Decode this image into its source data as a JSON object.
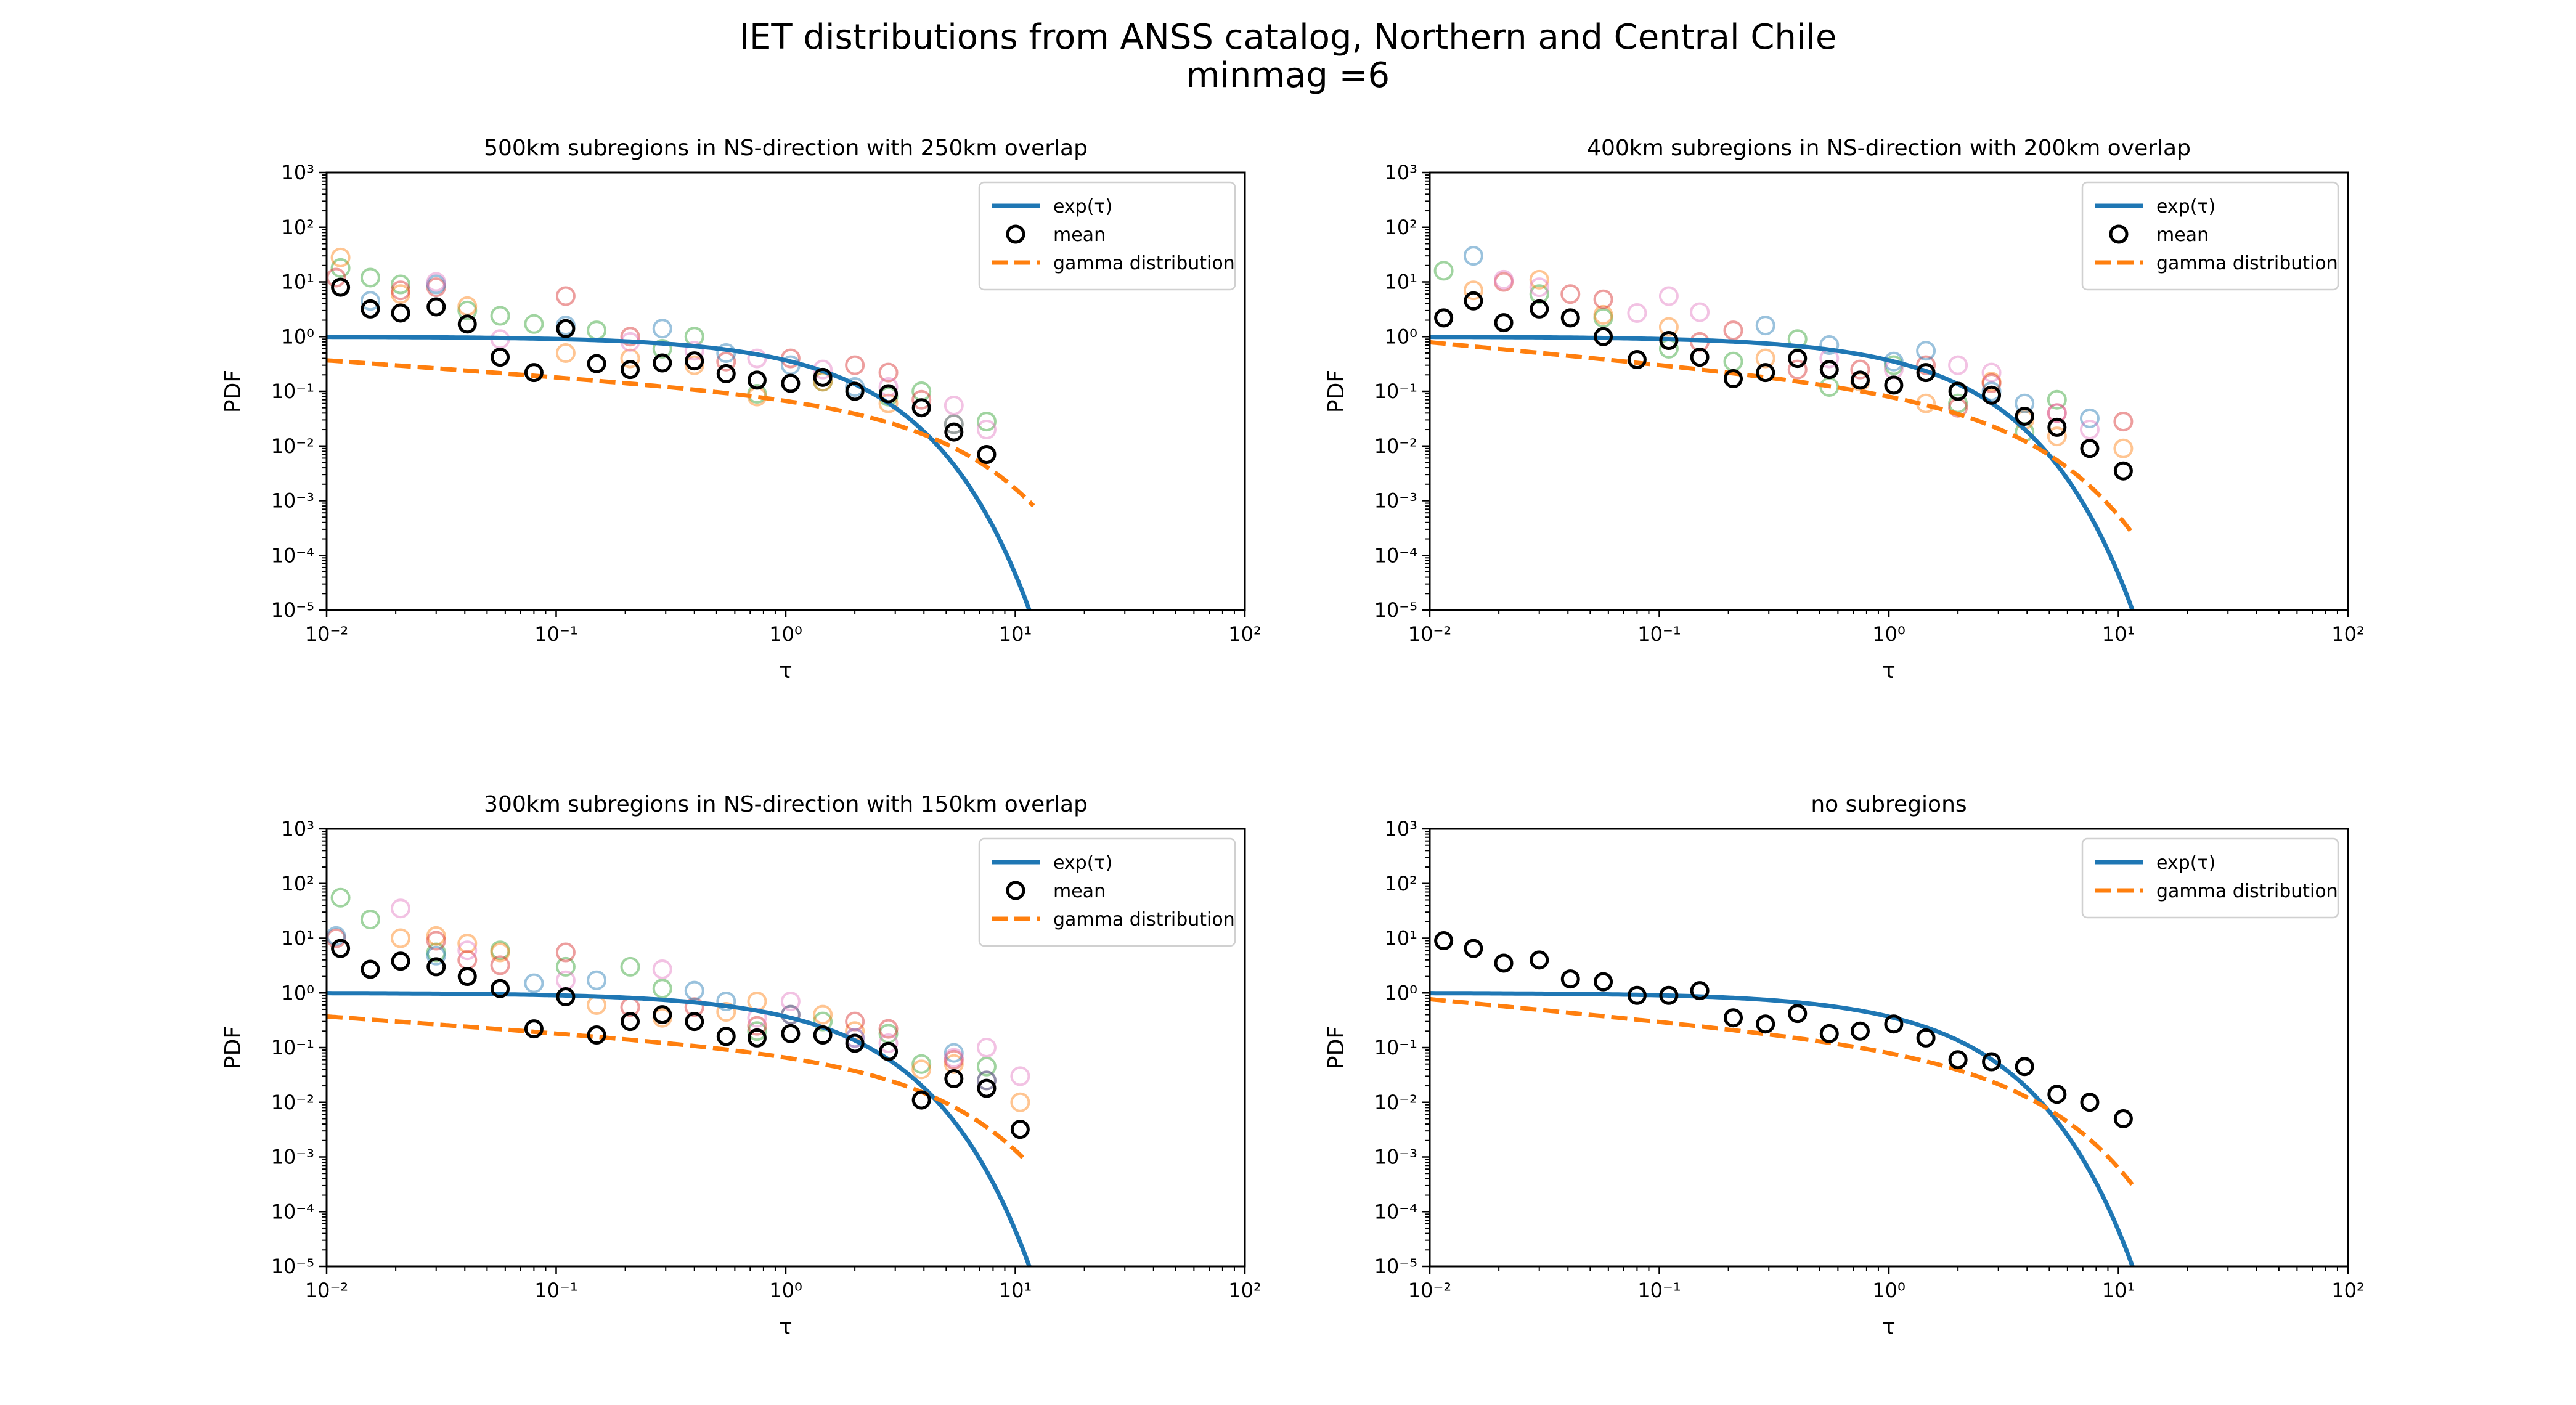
{
  "figure": {
    "suptitle_line1": "IET distributions from ANSS catalog, Northern and Central Chile",
    "suptitle_line2": "minmag =6"
  },
  "colors": {
    "exp": "#1f77b4",
    "gamma": "#ff7f0e",
    "mean": "#000000",
    "subregion_markers": [
      "#ff7f0e",
      "#2ca02c",
      "#d62728",
      "#1f77b4",
      "#e377c2"
    ]
  },
  "chart_data": [
    {
      "type": "scatter",
      "title": "500km subregions  in NS-direction with 250km overlap",
      "xlabel": "τ",
      "ylabel": "PDF",
      "xscale": "log",
      "yscale": "log",
      "xlim": [
        0.01,
        100
      ],
      "ylim": [
        1e-05,
        1000
      ],
      "xtick_exponents": [
        -2,
        -1,
        0,
        1,
        2
      ],
      "ytick_exponents": [
        -5,
        -4,
        -3,
        -2,
        -1,
        0,
        1,
        2,
        3
      ],
      "legend": {
        "position": "top-right",
        "entries": [
          "exp(τ)",
          "mean",
          "gamma distribution"
        ]
      },
      "series": [
        {
          "name": "exp(τ)",
          "kind": "line",
          "color": "#1f77b4",
          "function": "exp(-x)",
          "x_range": [
            0.01,
            12
          ]
        },
        {
          "name": "gamma distribution",
          "kind": "dashed",
          "color": "#ff7f0e",
          "shape": 0.7,
          "scale": 3.0,
          "amplitude": 0.26,
          "x_range": [
            0.01,
            12
          ]
        },
        {
          "name": "mean",
          "kind": "mean",
          "color": "#000000",
          "x": [
            0.0115,
            0.0155,
            0.021,
            0.03,
            0.041,
            0.057,
            0.08,
            0.11,
            0.15,
            0.21,
            0.29,
            0.4,
            0.55,
            0.75,
            1.05,
            1.45,
            2.0,
            2.8,
            3.9,
            5.4,
            7.5
          ],
          "y": [
            8.0,
            3.2,
            2.7,
            3.5,
            1.7,
            0.42,
            0.22,
            1.4,
            0.32,
            0.25,
            0.33,
            0.36,
            0.21,
            0.16,
            0.14,
            0.18,
            0.1,
            0.09,
            0.05,
            0.018,
            0.007
          ]
        },
        {
          "kind": "sub",
          "color": "#2ca02c",
          "x": [
            0.0115,
            0.0155,
            0.021,
            0.041,
            0.057,
            0.08,
            0.15,
            0.29,
            0.4,
            0.75,
            1.45,
            2.8,
            3.9,
            7.5
          ],
          "y": [
            18,
            12,
            9,
            3.0,
            2.4,
            1.7,
            1.3,
            0.6,
            1.0,
            0.09,
            0.15,
            0.08,
            0.1,
            0.028
          ]
        },
        {
          "kind": "sub",
          "color": "#ff7f0e",
          "x": [
            0.0115,
            0.021,
            0.041,
            0.11,
            0.21,
            0.4,
            0.75,
            1.45,
            2.8,
            5.4
          ],
          "y": [
            28,
            6,
            3.6,
            0.5,
            0.4,
            0.3,
            0.08,
            0.15,
            0.06,
            0.025
          ]
        },
        {
          "kind": "sub",
          "color": "#d62728",
          "x": [
            0.011,
            0.021,
            0.03,
            0.11,
            0.21,
            0.55,
            1.05,
            2.0,
            2.8,
            3.9
          ],
          "y": [
            12,
            7,
            8,
            5.5,
            1.0,
            0.35,
            0.4,
            0.3,
            0.22,
            0.07
          ]
        },
        {
          "kind": "sub",
          "color": "#1f77b4",
          "x": [
            0.0155,
            0.03,
            0.11,
            0.29,
            0.55,
            1.05,
            2.0,
            5.4
          ],
          "y": [
            4.5,
            9.0,
            1.6,
            1.4,
            0.5,
            0.3,
            0.12,
            0.025
          ]
        },
        {
          "kind": "sub",
          "color": "#e377c2",
          "x": [
            0.03,
            0.057,
            0.21,
            0.4,
            0.75,
            1.45,
            2.8,
            5.4,
            7.5
          ],
          "y": [
            10,
            0.9,
            0.8,
            0.55,
            0.4,
            0.25,
            0.12,
            0.055,
            0.02
          ]
        }
      ]
    },
    {
      "type": "scatter",
      "title": "400km subregions  in NS-direction with 200km overlap",
      "xlabel": "τ",
      "ylabel": "PDF",
      "xscale": "log",
      "yscale": "log",
      "xlim": [
        0.01,
        100
      ],
      "ylim": [
        1e-05,
        1000
      ],
      "xtick_exponents": [
        -2,
        -1,
        0,
        1,
        2
      ],
      "ytick_exponents": [
        -5,
        -4,
        -3,
        -2,
        -1,
        0,
        1,
        2,
        3
      ],
      "legend": {
        "position": "top-right",
        "entries": [
          "exp(τ)",
          "mean",
          "gamma distribution"
        ]
      },
      "series": [
        {
          "name": "exp(τ)",
          "kind": "line",
          "color": "#1f77b4",
          "function": "exp(-x)",
          "x_range": [
            0.01,
            12
          ]
        },
        {
          "name": "gamma distribution",
          "kind": "dashed",
          "color": "#ff7f0e",
          "shape": 0.6,
          "scale": 2.2,
          "amplitude": 0.3,
          "x_range": [
            0.01,
            11.5
          ]
        },
        {
          "name": "mean",
          "kind": "mean",
          "color": "#000000",
          "x": [
            0.0115,
            0.0155,
            0.021,
            0.03,
            0.041,
            0.057,
            0.08,
            0.11,
            0.15,
            0.21,
            0.29,
            0.4,
            0.55,
            0.75,
            1.05,
            1.45,
            2.0,
            2.8,
            3.9,
            5.4,
            7.5,
            10.5
          ],
          "y": [
            2.2,
            4.5,
            1.8,
            3.2,
            2.2,
            1.0,
            0.38,
            0.85,
            0.42,
            0.17,
            0.22,
            0.4,
            0.25,
            0.16,
            0.13,
            0.22,
            0.1,
            0.085,
            0.035,
            0.022,
            0.009,
            0.0035
          ]
        },
        {
          "kind": "sub",
          "color": "#2ca02c",
          "x": [
            0.0115,
            0.03,
            0.057,
            0.11,
            0.21,
            0.4,
            0.55,
            1.05,
            2.0,
            3.9,
            5.4
          ],
          "y": [
            16,
            6,
            2.2,
            0.6,
            0.35,
            0.9,
            0.12,
            0.3,
            0.06,
            0.018,
            0.07
          ]
        },
        {
          "kind": "sub",
          "color": "#ff7f0e",
          "x": [
            0.0155,
            0.03,
            0.057,
            0.11,
            0.29,
            0.75,
            1.45,
            2.8,
            3.9,
            5.4,
            10.5
          ],
          "y": [
            7,
            11,
            2.5,
            1.5,
            0.4,
            0.15,
            0.06,
            0.15,
            0.03,
            0.015,
            0.009
          ]
        },
        {
          "kind": "sub",
          "color": "#d62728",
          "x": [
            0.021,
            0.041,
            0.057,
            0.15,
            0.21,
            0.4,
            0.75,
            1.45,
            2.0,
            2.8,
            5.4,
            10.5
          ],
          "y": [
            10,
            6,
            4.8,
            0.8,
            1.3,
            0.25,
            0.25,
            0.3,
            0.05,
            0.14,
            0.04,
            0.028
          ]
        },
        {
          "kind": "sub",
          "color": "#1f77b4",
          "x": [
            0.0155,
            0.29,
            0.55,
            1.05,
            1.45,
            2.8,
            3.9,
            7.5
          ],
          "y": [
            30,
            1.6,
            0.7,
            0.35,
            0.55,
            0.1,
            0.06,
            0.032
          ]
        },
        {
          "kind": "sub",
          "color": "#e377c2",
          "x": [
            0.021,
            0.03,
            0.08,
            0.11,
            0.15,
            0.55,
            1.05,
            2.0,
            2.8,
            5.4,
            7.5
          ],
          "y": [
            11,
            8,
            2.7,
            5.5,
            2.8,
            0.4,
            0.25,
            0.3,
            0.22,
            0.04,
            0.02
          ]
        }
      ]
    },
    {
      "type": "scatter",
      "title": "300km subregions  in NS-direction with 150km overlap",
      "xlabel": "τ",
      "ylabel": "PDF",
      "xscale": "log",
      "yscale": "log",
      "xlim": [
        0.01,
        100
      ],
      "ylim": [
        1e-05,
        1000
      ],
      "xtick_exponents": [
        -2,
        -1,
        0,
        1,
        2
      ],
      "ytick_exponents": [
        -5,
        -4,
        -3,
        -2,
        -1,
        0,
        1,
        2,
        3
      ],
      "legend": {
        "position": "top-right",
        "entries": [
          "exp(τ)",
          "mean",
          "gamma distribution"
        ]
      },
      "series": [
        {
          "name": "exp(τ)",
          "kind": "line",
          "color": "#1f77b4",
          "function": "exp(-x)",
          "x_range": [
            0.01,
            12
          ]
        },
        {
          "name": "gamma distribution",
          "kind": "dashed",
          "color": "#ff7f0e",
          "shape": 0.7,
          "scale": 2.8,
          "amplitude": 0.25,
          "x_range": [
            0.01,
            11
          ]
        },
        {
          "name": "mean",
          "kind": "mean",
          "color": "#000000",
          "x": [
            0.0115,
            0.0155,
            0.021,
            0.03,
            0.041,
            0.057,
            0.08,
            0.11,
            0.15,
            0.21,
            0.29,
            0.4,
            0.55,
            0.75,
            1.05,
            1.45,
            2.0,
            2.8,
            3.9,
            5.4,
            7.5,
            10.5
          ],
          "y": [
            6.5,
            2.7,
            3.8,
            3.0,
            2.0,
            1.2,
            0.22,
            0.85,
            0.17,
            0.3,
            0.4,
            0.3,
            0.16,
            0.15,
            0.18,
            0.17,
            0.12,
            0.085,
            0.011,
            0.027,
            0.018,
            0.0032
          ]
        },
        {
          "kind": "sub",
          "color": "#2ca02c",
          "x": [
            0.0115,
            0.0155,
            0.03,
            0.057,
            0.11,
            0.21,
            0.29,
            0.75,
            1.45,
            2.8,
            3.9,
            7.5
          ],
          "y": [
            55,
            22,
            5.5,
            6.0,
            3.0,
            3.0,
            1.2,
            0.2,
            0.3,
            0.18,
            0.05,
            0.045
          ]
        },
        {
          "kind": "sub",
          "color": "#ff7f0e",
          "x": [
            0.021,
            0.03,
            0.041,
            0.057,
            0.15,
            0.29,
            0.55,
            0.75,
            1.45,
            2.0,
            3.9,
            5.4,
            10.5
          ],
          "y": [
            10,
            11,
            8,
            5.5,
            0.6,
            0.35,
            0.45,
            0.7,
            0.4,
            0.2,
            0.04,
            0.05,
            0.01
          ]
        },
        {
          "kind": "sub",
          "color": "#d62728",
          "x": [
            0.011,
            0.03,
            0.041,
            0.057,
            0.11,
            0.21,
            0.4,
            0.75,
            1.05,
            2.0,
            2.8,
            5.4,
            7.5
          ],
          "y": [
            10,
            9,
            4.0,
            3.2,
            5.5,
            0.55,
            0.55,
            0.25,
            0.4,
            0.3,
            0.22,
            0.06,
            0.025
          ]
        },
        {
          "kind": "sub",
          "color": "#1f77b4",
          "x": [
            0.011,
            0.03,
            0.08,
            0.15,
            0.4,
            0.55,
            1.05,
            2.0,
            5.4,
            7.5
          ],
          "y": [
            11,
            4.8,
            1.5,
            1.7,
            1.1,
            0.7,
            0.4,
            0.15,
            0.08,
            0.025
          ]
        },
        {
          "kind": "sub",
          "color": "#e377c2",
          "x": [
            0.021,
            0.041,
            0.11,
            0.29,
            0.75,
            1.05,
            2.0,
            2.8,
            5.4,
            7.5,
            10.5
          ],
          "y": [
            35,
            6,
            1.7,
            2.7,
            0.35,
            0.7,
            0.15,
            0.12,
            0.065,
            0.1,
            0.03
          ]
        }
      ]
    },
    {
      "type": "scatter",
      "title": "no subregions",
      "xlabel": "τ",
      "ylabel": "PDF",
      "xscale": "log",
      "yscale": "log",
      "xlim": [
        0.01,
        100
      ],
      "ylim": [
        1e-05,
        1000
      ],
      "xtick_exponents": [
        -2,
        -1,
        0,
        1,
        2
      ],
      "ytick_exponents": [
        -5,
        -4,
        -3,
        -2,
        -1,
        0,
        1,
        2,
        3
      ],
      "legend": {
        "position": "top-right",
        "entries": [
          "exp(τ)",
          "gamma distribution"
        ]
      },
      "series": [
        {
          "name": "exp(τ)",
          "kind": "line",
          "color": "#1f77b4",
          "function": "exp(-x)",
          "x_range": [
            0.01,
            12
          ]
        },
        {
          "name": "gamma distribution",
          "kind": "dashed",
          "color": "#ff7f0e",
          "shape": 0.6,
          "scale": 2.3,
          "amplitude": 0.3,
          "x_range": [
            0.01,
            11.5
          ]
        },
        {
          "kind": "mean",
          "color": "#000000",
          "x": [
            0.0115,
            0.0155,
            0.021,
            0.03,
            0.041,
            0.057,
            0.08,
            0.11,
            0.15,
            0.21,
            0.29,
            0.4,
            0.55,
            0.75,
            1.05,
            1.45,
            2.0,
            2.8,
            3.9,
            5.4,
            7.5,
            10.5
          ],
          "y": [
            9.0,
            6.5,
            3.5,
            4.0,
            1.8,
            1.6,
            0.9,
            0.9,
            1.1,
            0.35,
            0.27,
            0.42,
            0.18,
            0.2,
            0.27,
            0.15,
            0.06,
            0.055,
            0.045,
            0.014,
            0.01,
            0.005
          ]
        }
      ]
    }
  ]
}
